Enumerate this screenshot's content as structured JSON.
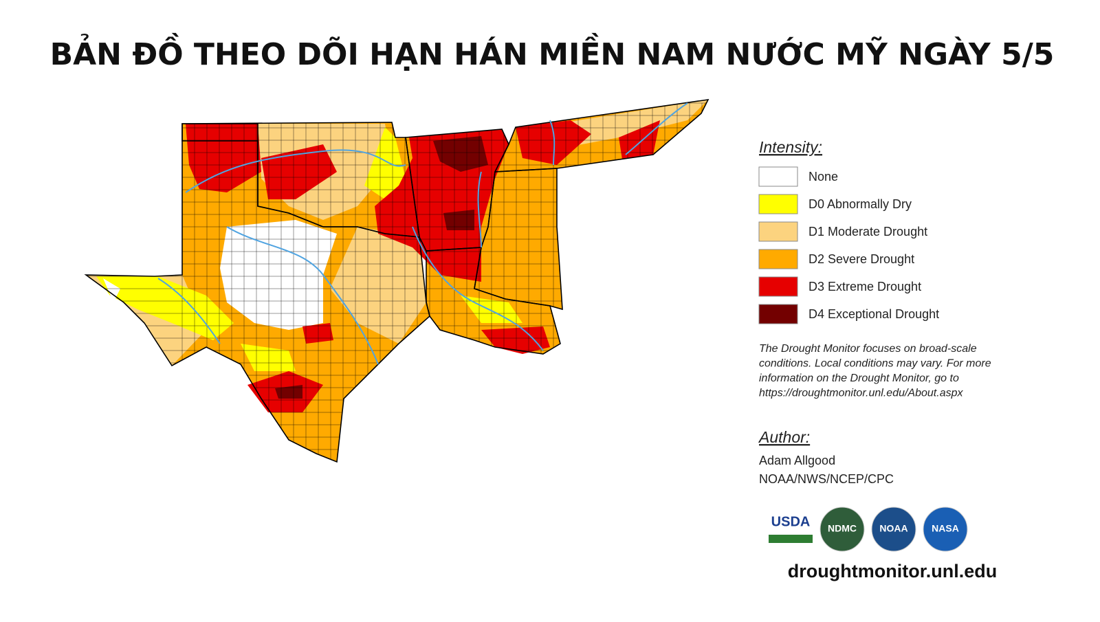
{
  "title": "BẢN ĐỒ THEO DÕI HẠN HÁN MIỀN NAM NƯỚC MỸ NGÀY 5/5",
  "legend": {
    "title": "Intensity:",
    "items": [
      {
        "label": "None",
        "color": "#ffffff"
      },
      {
        "label": "D0 Abnormally Dry",
        "color": "#ffff00"
      },
      {
        "label": "D1 Moderate Drought",
        "color": "#fcd37f"
      },
      {
        "label": "D2 Severe Drought",
        "color": "#ffaa00"
      },
      {
        "label": "D3 Extreme Drought",
        "color": "#e60000"
      },
      {
        "label": "D4 Exceptional Drought",
        "color": "#730000"
      }
    ]
  },
  "note": [
    "The Drought Monitor focuses on broad-scale",
    "conditions. Local conditions may vary. For more",
    "information on the Drought Monitor, go to",
    "https://droughtmonitor.unl.edu/About.aspx"
  ],
  "author": {
    "title": "Author:",
    "lines": [
      "Adam Allgood",
      "NOAA/NWS/NCEP/CPC"
    ]
  },
  "logos": [
    "USDA",
    "NDMC",
    "NOAA",
    "NASA"
  ],
  "url": "droughtmonitor.unl.edu"
}
